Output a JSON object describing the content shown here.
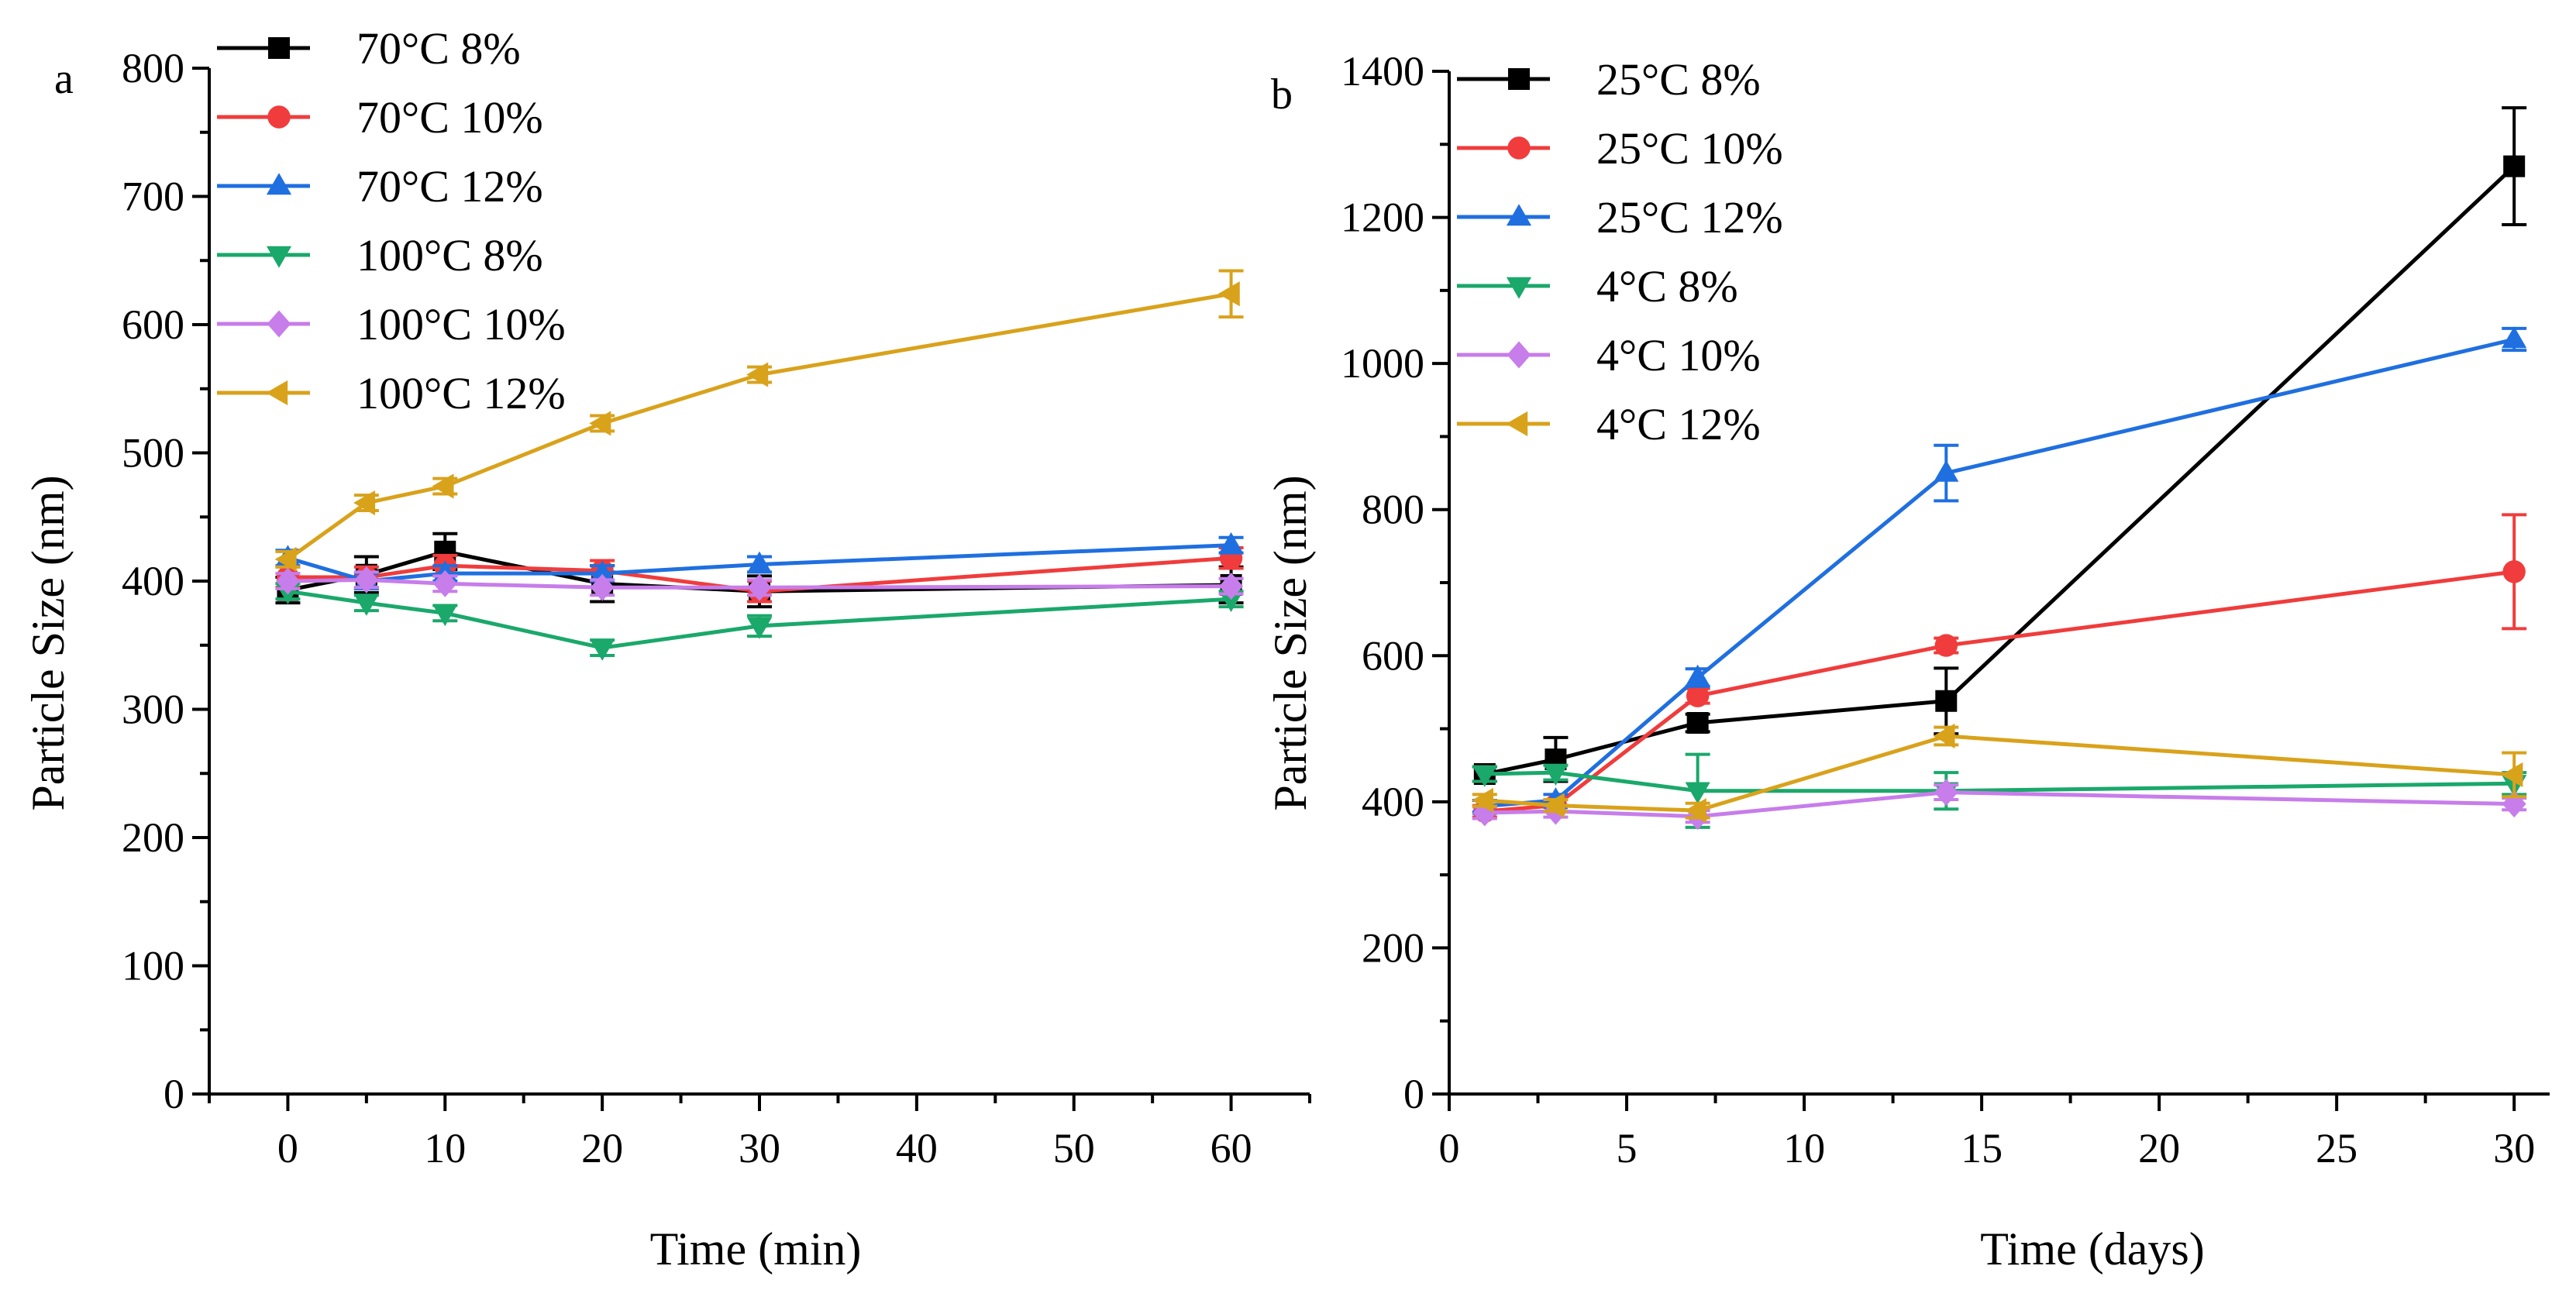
{
  "chart_data": [
    {
      "panel": "a",
      "type": "line",
      "xlabel": "Time (min)",
      "ylabel": "Particle Size (nm)",
      "xlim": [
        -5,
        65
      ],
      "ylim": [
        0,
        800
      ],
      "xticks": [
        0,
        10,
        20,
        30,
        40,
        50,
        60
      ],
      "yticks": [
        0,
        100,
        200,
        300,
        400,
        500,
        600,
        700,
        800
      ],
      "legend_position": "top-left",
      "series": [
        {
          "name": "70°C 8%",
          "color": "#000000",
          "marker": "square",
          "x": [
            0,
            5,
            10,
            20,
            30,
            60
          ],
          "y": [
            393,
            405,
            423,
            398,
            392,
            397
          ],
          "err": [
            10,
            14,
            14,
            14,
            12,
            14
          ]
        },
        {
          "name": "70°C 10%",
          "color": "#f03c3c",
          "marker": "circle",
          "x": [
            0,
            5,
            10,
            20,
            30,
            60
          ],
          "y": [
            403,
            403,
            412,
            408,
            392,
            418
          ],
          "err": [
            8,
            8,
            8,
            8,
            8,
            8
          ]
        },
        {
          "name": "70°C 12%",
          "color": "#1f6fe0",
          "marker": "triangle-up",
          "x": [
            0,
            5,
            10,
            20,
            30,
            60
          ],
          "y": [
            418,
            400,
            406,
            406,
            413,
            428
          ],
          "err": [
            6,
            6,
            6,
            6,
            6,
            6
          ]
        },
        {
          "name": "100°C 8%",
          "color": "#1aa86b",
          "marker": "triangle-down",
          "x": [
            0,
            5,
            10,
            20,
            30,
            60
          ],
          "y": [
            392,
            383,
            375,
            348,
            365,
            386
          ],
          "err": [
            6,
            6,
            6,
            6,
            8,
            6
          ]
        },
        {
          "name": "100°C 10%",
          "color": "#c77dea",
          "marker": "diamond",
          "x": [
            0,
            5,
            10,
            20,
            30,
            60
          ],
          "y": [
            400,
            401,
            398,
            395,
            395,
            396
          ],
          "err": [
            6,
            6,
            6,
            6,
            6,
            6
          ]
        },
        {
          "name": "100°C 12%",
          "color": "#d9a21b",
          "marker": "triangle-left",
          "x": [
            0,
            5,
            10,
            20,
            30,
            60
          ],
          "y": [
            417,
            461,
            474,
            523,
            561,
            624
          ],
          "err": [
            6,
            6,
            6,
            6,
            6,
            18
          ]
        }
      ]
    },
    {
      "panel": "b",
      "type": "line",
      "xlabel": "Time (days)",
      "ylabel": "Particle Size (nm)",
      "xlim": [
        0,
        31
      ],
      "ylim": [
        0,
        1400
      ],
      "xticks": [
        0,
        5,
        10,
        15,
        20,
        25,
        30
      ],
      "yticks": [
        0,
        200,
        400,
        600,
        800,
        1000,
        1200,
        1400
      ],
      "legend_position": "top-left",
      "series": [
        {
          "name": "25°C 8%",
          "color": "#000000",
          "marker": "square",
          "x": [
            1,
            3,
            7,
            14,
            30
          ],
          "y": [
            438,
            458,
            508,
            538,
            1270
          ],
          "err": [
            10,
            30,
            12,
            45,
            80
          ]
        },
        {
          "name": "25°C 10%",
          "color": "#f03c3c",
          "marker": "circle",
          "x": [
            1,
            3,
            7,
            14,
            30
          ],
          "y": [
            387,
            395,
            545,
            614,
            715
          ],
          "err": [
            8,
            8,
            10,
            10,
            78
          ]
        },
        {
          "name": "25°C 12%",
          "color": "#1f6fe0",
          "marker": "triangle-up",
          "x": [
            1,
            3,
            7,
            14,
            30
          ],
          "y": [
            394,
            402,
            570,
            850,
            1033
          ],
          "err": [
            8,
            8,
            12,
            38,
            15
          ]
        },
        {
          "name": "4°C 8%",
          "color": "#1aa86b",
          "marker": "triangle-down",
          "x": [
            1,
            3,
            7,
            14,
            30
          ],
          "y": [
            438,
            440,
            415,
            415,
            425
          ],
          "err": [
            10,
            10,
            50,
            25,
            15
          ]
        },
        {
          "name": "4°C 10%",
          "color": "#c77dea",
          "marker": "diamond",
          "x": [
            1,
            3,
            7,
            14,
            30
          ],
          "y": [
            385,
            387,
            380,
            413,
            397
          ],
          "err": [
            8,
            8,
            8,
            10,
            8
          ]
        },
        {
          "name": "4°C 12%",
          "color": "#d9a21b",
          "marker": "triangle-left",
          "x": [
            1,
            3,
            7,
            14,
            30
          ],
          "y": [
            402,
            395,
            388,
            490,
            437
          ],
          "err": [
            8,
            8,
            10,
            12,
            30
          ]
        }
      ]
    }
  ]
}
